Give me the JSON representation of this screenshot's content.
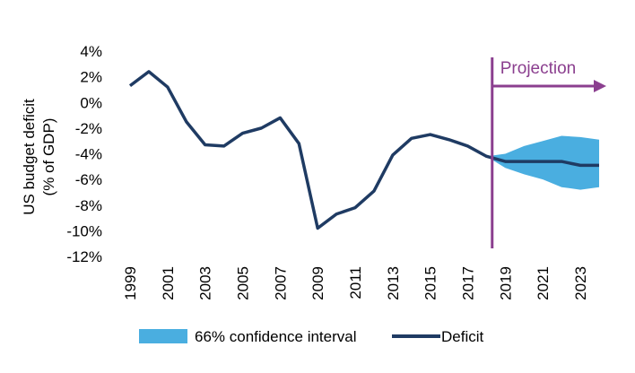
{
  "chart_data": {
    "type": "line",
    "ylabel": "US budget deficit (% of GDP)",
    "ylabel_lines": [
      "US budget deficit",
      "(% of GDP)"
    ],
    "ylim": [
      -12,
      4
    ],
    "yticks": [
      4,
      2,
      0,
      -2,
      -4,
      -6,
      -8,
      -10,
      -12
    ],
    "ytick_labels": [
      "4%",
      "2%",
      "0%",
      "-2%",
      "-4%",
      "-6%",
      "-8%",
      "-10%",
      "-12%"
    ],
    "xlim": [
      1999,
      2024
    ],
    "xticks": [
      1999,
      2001,
      2003,
      2005,
      2007,
      2009,
      2011,
      2013,
      2015,
      2017,
      2019,
      2021,
      2023
    ],
    "xtick_labels": [
      "1999",
      "2001",
      "2003",
      "2005",
      "2007",
      "2009",
      "2011",
      "2013",
      "2015",
      "2017",
      "2019",
      "2021",
      "2023"
    ],
    "grid": false,
    "legend_position": "bottom",
    "colors": {
      "deficit": "#1f3b63",
      "confidence": "#4aaee0",
      "projection": "#8b3f8f"
    },
    "series": [
      {
        "name": "Deficit",
        "x": [
          1999,
          2000,
          2001,
          2002,
          2003,
          2004,
          2005,
          2006,
          2007,
          2008,
          2009,
          2010,
          2011,
          2012,
          2013,
          2014,
          2015,
          2016,
          2017,
          2018,
          2019,
          2020,
          2021,
          2022,
          2023,
          2024
        ],
        "values": [
          1.3,
          2.4,
          1.2,
          -1.5,
          -3.3,
          -3.4,
          -2.4,
          -2.0,
          -1.2,
          -3.2,
          -9.8,
          -8.7,
          -8.2,
          -6.9,
          -4.1,
          -2.8,
          -2.5,
          -2.9,
          -3.4,
          -4.2,
          -4.6,
          -4.6,
          -4.6,
          -4.6,
          -4.9,
          -4.9
        ]
      },
      {
        "name": "66% confidence interval",
        "x": [
          2018,
          2019,
          2020,
          2021,
          2022,
          2023,
          2024
        ],
        "upper": [
          -4.2,
          -4.0,
          -3.4,
          -3.0,
          -2.6,
          -2.7,
          -2.9
        ],
        "lower": [
          -4.2,
          -5.1,
          -5.6,
          -6.0,
          -6.6,
          -6.8,
          -6.6
        ]
      }
    ],
    "annotations": [
      {
        "text": "Projection",
        "x": 2018.3
      }
    ]
  }
}
